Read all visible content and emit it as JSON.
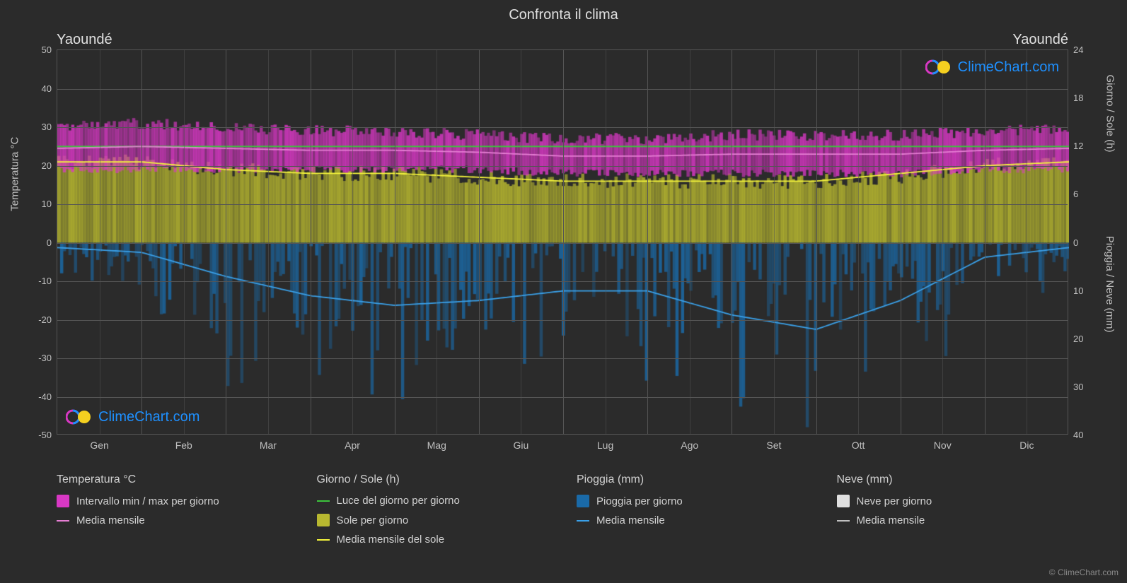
{
  "title": "Confronta il clima",
  "city_left": "Yaoundé",
  "city_right": "Yaoundé",
  "months": [
    "Gen",
    "Feb",
    "Mar",
    "Apr",
    "Mag",
    "Giu",
    "Lug",
    "Ago",
    "Set",
    "Ott",
    "Nov",
    "Dic"
  ],
  "y_left": {
    "label": "Temperatura °C",
    "min": -50,
    "max": 50,
    "step": 10
  },
  "y_right_top": {
    "label": "Giorno / Sole (h)",
    "at50": 24,
    "at25": 18,
    "at0": 0,
    "ticks": [
      0,
      6,
      12,
      18,
      24
    ]
  },
  "y_right_bottom": {
    "label": "Pioggia / Neve (mm)",
    "at0": 0,
    "atminus50": 40,
    "ticks": [
      0,
      10,
      20,
      30,
      40
    ]
  },
  "background_color": "#2b2b2b",
  "grid_color": "#555555",
  "text_color": "#d0d0d0",
  "colors": {
    "temp_range": "#d838c4",
    "temp_mean_line": "#e67fd4",
    "daylight_line": "#3cc43c",
    "sun_fill": "#b8b830",
    "sun_mean_line": "#f5f53c",
    "rain_fill": "#1a6aa8",
    "rain_mean_line": "#3aa0e8",
    "snow_fill": "#e0e0e0",
    "snow_mean_line": "#c0c0c0"
  },
  "data": {
    "temp_min_monthly": [
      19,
      19,
      19,
      19,
      19,
      19,
      18,
      18,
      18,
      18,
      18,
      19
    ],
    "temp_max_monthly": [
      30,
      31,
      30,
      29,
      29,
      28,
      27,
      27,
      28,
      28,
      28,
      29
    ],
    "temp_mean_monthly": [
      24.5,
      25,
      24.5,
      24,
      24,
      23.5,
      22.5,
      22.5,
      23,
      23,
      23,
      24
    ],
    "daylight_monthly": [
      12,
      12,
      12,
      12,
      12,
      12,
      12,
      12,
      12,
      12,
      12,
      12
    ],
    "sun_fill_monthly": [
      21,
      21,
      19,
      18,
      18,
      17,
      16,
      16,
      16,
      16,
      17,
      20
    ],
    "sun_mean_monthly": [
      21,
      21,
      19,
      18,
      18,
      17,
      16,
      16,
      16,
      16,
      18,
      20
    ],
    "rain_mean_mm_monthly": [
      1,
      2,
      7,
      11,
      13,
      12,
      10,
      10,
      15,
      18,
      12,
      3
    ],
    "rain_peak_mm_monthly": [
      8,
      12,
      30,
      32,
      35,
      30,
      28,
      30,
      38,
      40,
      35,
      15
    ]
  },
  "legend": {
    "temp": {
      "title": "Temperatura °C",
      "range": "Intervallo min / max per giorno",
      "mean": "Media mensile"
    },
    "day": {
      "title": "Giorno / Sole (h)",
      "daylight": "Luce del giorno per giorno",
      "sun": "Sole per giorno",
      "sunmean": "Media mensile del sole"
    },
    "rain": {
      "title": "Pioggia (mm)",
      "daily": "Pioggia per giorno",
      "mean": "Media mensile"
    },
    "snow": {
      "title": "Neve (mm)",
      "daily": "Neve per giorno",
      "mean": "Media mensile"
    }
  },
  "watermark": "ClimeChart.com",
  "copyright": "© ClimeChart.com"
}
